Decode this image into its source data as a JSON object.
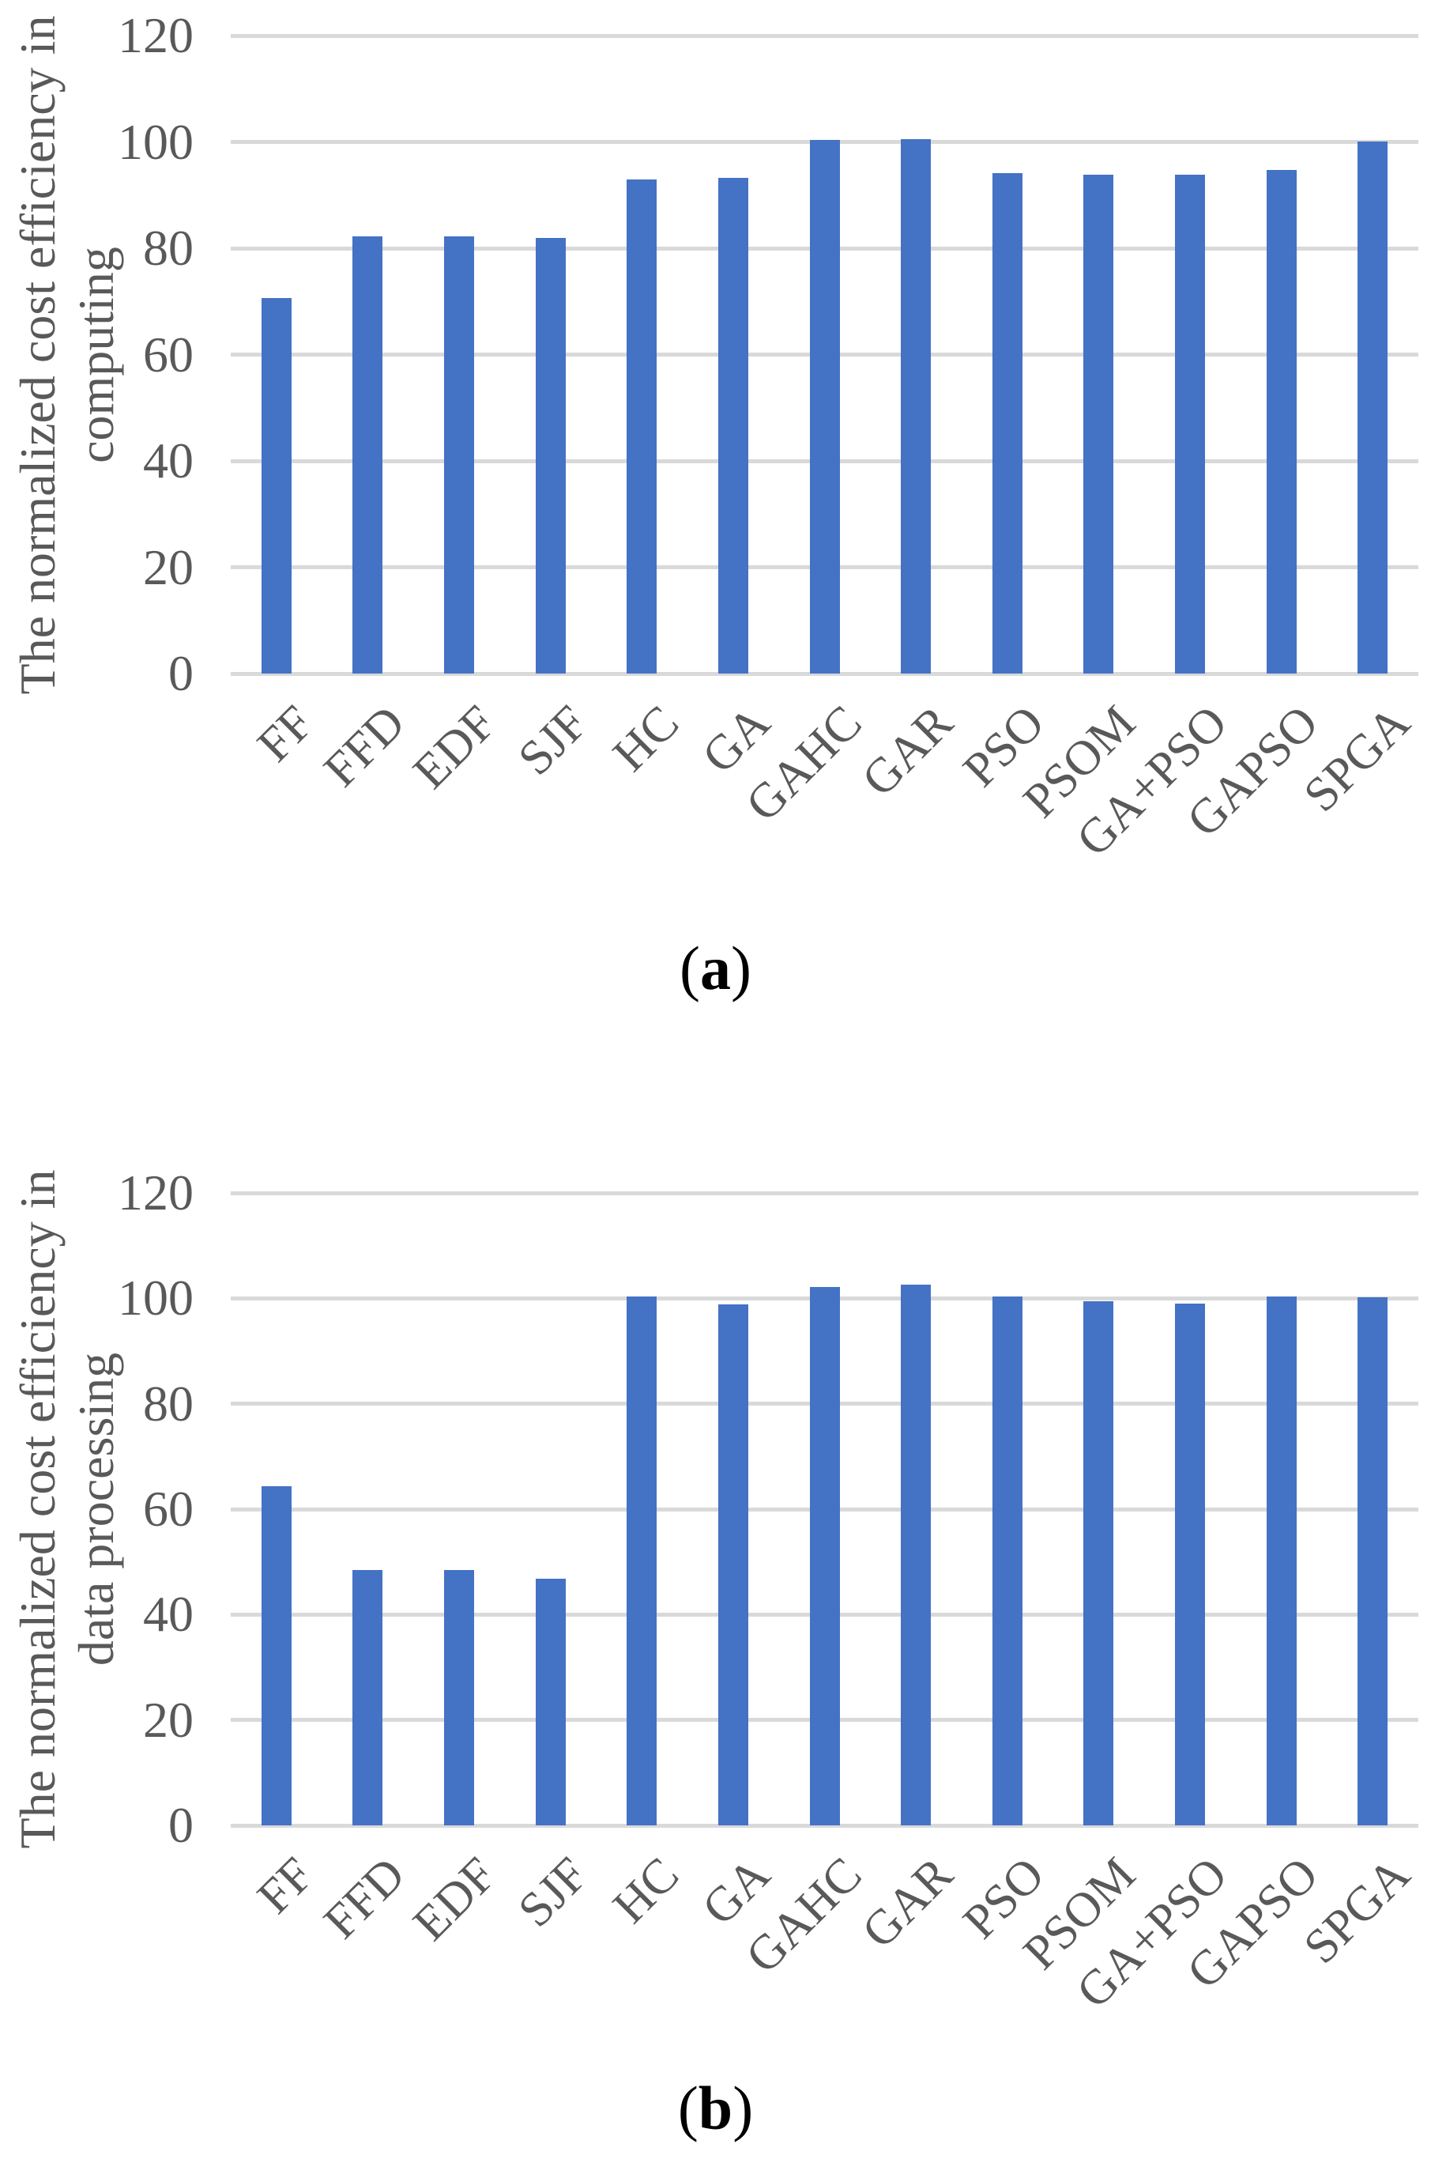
{
  "colors": {
    "bar": "#4472C4",
    "gridline": "#D9D9D9",
    "axis_text": "#595959",
    "caption_text": "#000000"
  },
  "figure": {
    "captions": [
      {
        "open": "(",
        "letter": "a",
        "close": ")"
      },
      {
        "open": "(",
        "letter": "b",
        "close": ")"
      }
    ]
  },
  "chart_data": [
    {
      "type": "bar",
      "title": "",
      "xlabel": "",
      "ylabel": "The normalized cost efficiency in computing",
      "ylabel_lines": [
        "The normalized cost efficiency in",
        "computing"
      ],
      "categories": [
        "FF",
        "FFD",
        "EDF",
        "SJF",
        "HC",
        "GA",
        "GAHC",
        "GAR",
        "PSO",
        "PSOM",
        "GA+PSO",
        "GAPSO",
        "SPGA"
      ],
      "values": [
        70.7,
        82.3,
        82.3,
        82.0,
        92.9,
        93.2,
        100.3,
        100.5,
        94.2,
        93.9,
        93.8,
        94.7,
        100.1
      ],
      "ylim": [
        0,
        120
      ],
      "yticks": [
        0,
        20,
        40,
        60,
        80,
        100,
        120
      ],
      "ytick_labels": [
        "0",
        "20",
        "40",
        "60",
        "80",
        "100",
        "120"
      ],
      "grid": true,
      "legend": false,
      "caption": "(a)"
    },
    {
      "type": "bar",
      "title": "",
      "xlabel": "",
      "ylabel": "The normalized cost efficiency in data processing",
      "ylabel_lines": [
        "The normalized cost efficiency in",
        "data processing"
      ],
      "categories": [
        "FF",
        "FFD",
        "EDF",
        "SJF",
        "HC",
        "GA",
        "GAHC",
        "GAR",
        "PSO",
        "PSOM",
        "GA+PSO",
        "GAPSO",
        "SPGA"
      ],
      "values": [
        64.3,
        48.4,
        48.4,
        46.8,
        100.3,
        98.9,
        102.2,
        102.6,
        100.3,
        99.4,
        99.0,
        100.3,
        100.2
      ],
      "ylim": [
        0,
        120
      ],
      "yticks": [
        0,
        20,
        40,
        60,
        80,
        100,
        120
      ],
      "ytick_labels": [
        "0",
        "20",
        "40",
        "60",
        "80",
        "100",
        "120"
      ],
      "grid": true,
      "legend": false,
      "caption": "(b)"
    }
  ]
}
